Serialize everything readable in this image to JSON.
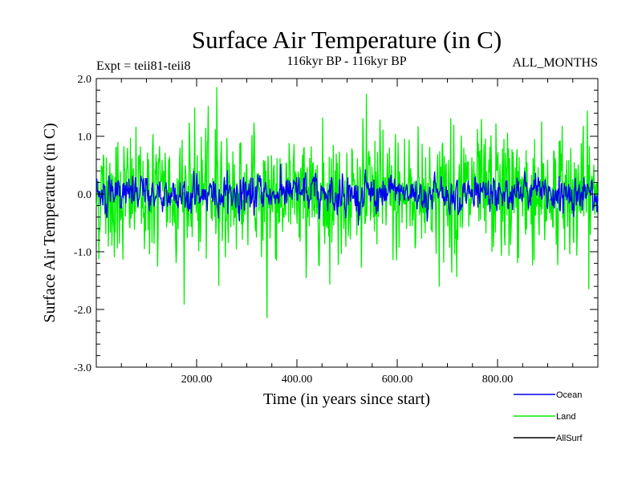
{
  "header": {
    "title": "Surface Air Temperature (in C)",
    "subtitle": "116kyr BP - 116kyr BP",
    "expt": "Expt = teii81-teii8",
    "months": "ALL_MONTHS"
  },
  "chart_data": {
    "type": "line",
    "xlabel": "Time (in years since start)",
    "ylabel": "Surface Air Temperature (in C)",
    "xlim": [
      0,
      1000
    ],
    "ylim": [
      -3.0,
      2.0
    ],
    "xticks": [
      200,
      400,
      600,
      800
    ],
    "xtick_labels": [
      "200.00",
      "400.00",
      "600.00",
      "800.00"
    ],
    "yticks": [
      -3.0,
      -2.0,
      -1.0,
      0.0,
      1.0,
      2.0
    ],
    "ytick_labels": [
      "-3.0",
      "-2.0",
      "-1.0",
      "0.0",
      "1.0",
      "2.0"
    ],
    "grid": false,
    "legend_position": "bottom-right",
    "series": [
      {
        "name": "Land",
        "color": "#00ee00",
        "n_points": 1000,
        "approx_std": 0.55,
        "approx_max": 1.85,
        "approx_max_x": 240,
        "approx_min": -2.15,
        "approx_min_x": 340
      },
      {
        "name": "Ocean",
        "color": "#0000ee",
        "n_points": 1000,
        "approx_std": 0.15
      },
      {
        "name": "AllSurf",
        "color": "#000000",
        "n_points": 1000,
        "approx_std": 0.2
      }
    ]
  }
}
